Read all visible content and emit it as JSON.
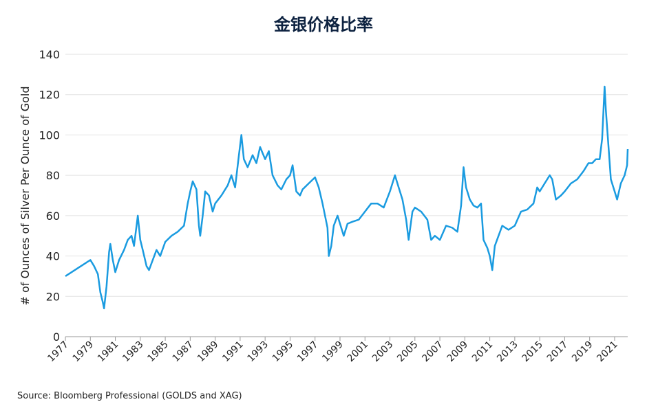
{
  "chart_data": {
    "type": "line",
    "title": "金银价格比率",
    "y_label": "# of Ounces of Silver Per Ounce of Gold",
    "source": "Source: Bloomberg Professional (GOLDS and XAG)",
    "xlim": [
      1977,
      2022.05
    ],
    "xticks": [
      1977,
      1979,
      1981,
      1983,
      1985,
      1987,
      1989,
      1991,
      1993,
      1995,
      1997,
      1999,
      2001,
      2003,
      2005,
      2007,
      2009,
      2011,
      2013,
      2015,
      2017,
      2019,
      2021
    ],
    "ylim": [
      0,
      140
    ],
    "yticks": [
      0,
      20,
      40,
      60,
      80,
      100,
      120,
      140
    ],
    "grid": true,
    "series": [
      {
        "color": "#1a9be0",
        "x": [
          1977.0,
          1977.5,
          1978.0,
          1978.5,
          1979.0,
          1979.3,
          1979.6,
          1979.8,
          1980.0,
          1980.1,
          1980.3,
          1980.5,
          1980.6,
          1980.8,
          1981.0,
          1981.3,
          1981.7,
          1982.0,
          1982.3,
          1982.5,
          1982.7,
          1982.8,
          1983.0,
          1983.2,
          1983.5,
          1983.7,
          1984.0,
          1984.3,
          1984.6,
          1985.0,
          1985.5,
          1986.0,
          1986.5,
          1986.8,
          1987.0,
          1987.2,
          1987.5,
          1987.7,
          1987.8,
          1988.0,
          1988.2,
          1988.5,
          1988.8,
          1989.0,
          1989.5,
          1990.0,
          1990.3,
          1990.6,
          1990.9,
          1991.1,
          1991.3,
          1991.6,
          1992.0,
          1992.3,
          1992.6,
          1993.0,
          1993.3,
          1993.6,
          1994.0,
          1994.3,
          1994.7,
          1995.0,
          1995.2,
          1995.5,
          1995.8,
          1996.0,
          1996.5,
          1997.0,
          1997.3,
          1997.6,
          1998.0,
          1998.1,
          1998.3,
          1998.5,
          1998.8,
          1999.0,
          1999.3,
          1999.6,
          2000.0,
          2000.5,
          2001.0,
          2001.5,
          2002.0,
          2002.5,
          2003.0,
          2003.4,
          2003.7,
          2004.0,
          2004.3,
          2004.5,
          2004.8,
          2005.0,
          2005.5,
          2006.0,
          2006.3,
          2006.6,
          2007.0,
          2007.5,
          2008.0,
          2008.4,
          2008.7,
          2008.9,
          2009.1,
          2009.4,
          2009.7,
          2010.0,
          2010.3,
          2010.5,
          2010.8,
          2011.0,
          2011.2,
          2011.4,
          2011.7,
          2012.0,
          2012.5,
          2013.0,
          2013.5,
          2014.0,
          2014.5,
          2014.8,
          2015.0,
          2015.5,
          2015.8,
          2016.0,
          2016.3,
          2016.7,
          2017.0,
          2017.5,
          2018.0,
          2018.5,
          2018.9,
          2019.2,
          2019.5,
          2019.8,
          2020.0,
          2020.2,
          2020.3,
          2020.5,
          2020.7,
          2021.0,
          2021.2,
          2021.5,
          2021.8,
          2022.0,
          2022.05
        ],
        "values": [
          30,
          32,
          34,
          36,
          38,
          35,
          31,
          22,
          17,
          14,
          25,
          42,
          46,
          38,
          32,
          38,
          43,
          48,
          50,
          45,
          55,
          60,
          48,
          43,
          35,
          33,
          38,
          43,
          40,
          47,
          50,
          52,
          55,
          66,
          72,
          77,
          73,
          55,
          50,
          60,
          72,
          70,
          62,
          66,
          70,
          75,
          80,
          74,
          90,
          100,
          88,
          84,
          90,
          86,
          94,
          88,
          92,
          80,
          75,
          73,
          78,
          80,
          85,
          72,
          70,
          73,
          76,
          79,
          74,
          66,
          54,
          40,
          45,
          55,
          60,
          56,
          50,
          56,
          57,
          58,
          62,
          66,
          66,
          64,
          72,
          80,
          74,
          68,
          58,
          48,
          62,
          64,
          62,
          58,
          48,
          50,
          48,
          55,
          54,
          52,
          65,
          84,
          74,
          68,
          65,
          64,
          66,
          48,
          44,
          40,
          33,
          45,
          50,
          55,
          53,
          55,
          62,
          63,
          66,
          74,
          72,
          77,
          80,
          78,
          68,
          70,
          72,
          76,
          78,
          82,
          86,
          86,
          88,
          88,
          98,
          124,
          112,
          95,
          78,
          72,
          68,
          76,
          80,
          85,
          93
        ]
      }
    ]
  }
}
